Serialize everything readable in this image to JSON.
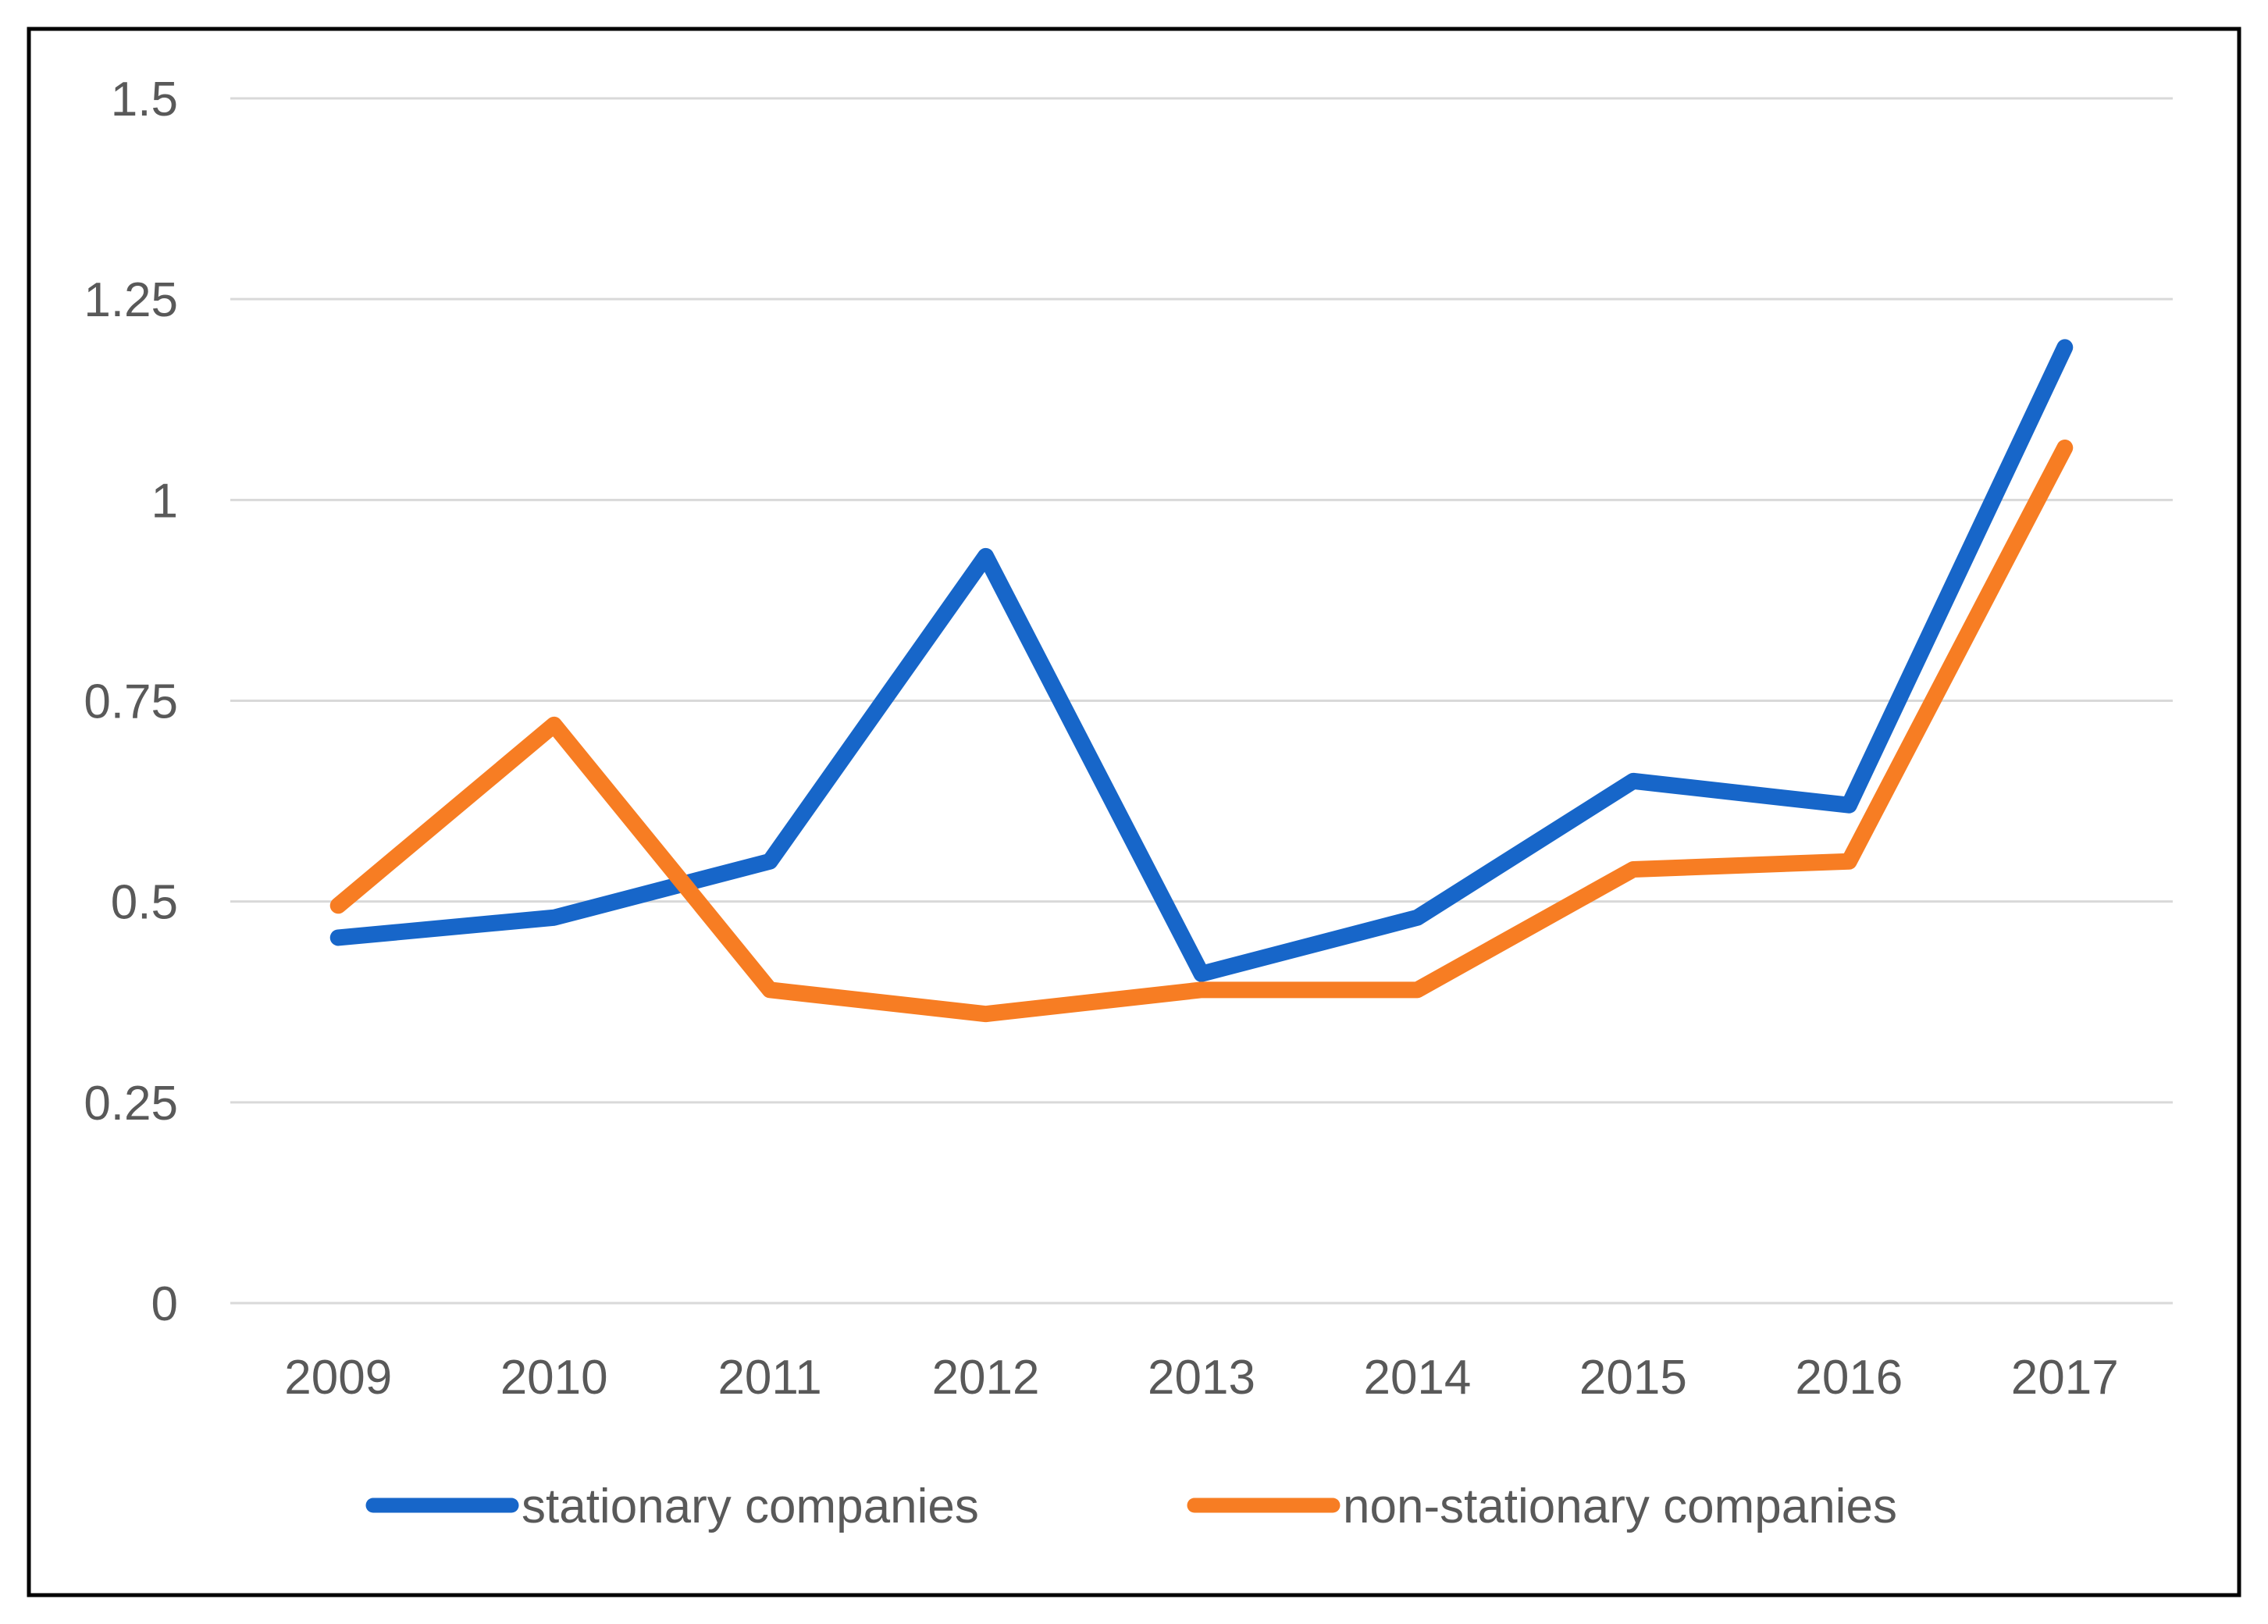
{
  "chart_data": {
    "type": "line",
    "categories": [
      "2009",
      "2010",
      "2011",
      "2012",
      "2013",
      "2014",
      "2015",
      "2016",
      "2017"
    ],
    "series": [
      {
        "name": "stationary companies",
        "color": "#1766C9",
        "values": [
          0.455,
          0.48,
          0.55,
          0.93,
          0.41,
          0.48,
          0.65,
          0.62,
          1.19
        ]
      },
      {
        "name": "non-stationary companies",
        "color": "#F77D23",
        "values": [
          0.495,
          0.72,
          0.39,
          0.36,
          0.39,
          0.39,
          0.54,
          0.55,
          1.065
        ]
      }
    ],
    "ylim": [
      0,
      1.5
    ],
    "yticks": [
      0,
      0.25,
      0.5,
      0.75,
      1,
      1.25,
      1.5
    ],
    "ytick_labels": [
      "0",
      "0.25",
      "0.5",
      "0.75",
      "1",
      "1.25",
      "1.5"
    ],
    "grid": "horizontal",
    "legend_position": "bottom",
    "colors": {
      "grid_line": "#D9D9D9",
      "tick_text": "#595959",
      "frame_border": "#000000",
      "background": "#FFFFFF"
    }
  }
}
